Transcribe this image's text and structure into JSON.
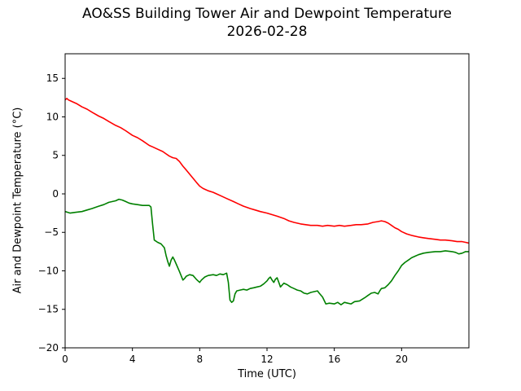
{
  "figure": {
    "background": "#ffffff"
  },
  "chart_data": {
    "type": "line",
    "title": "AO&SS Building Tower Air and Dewpoint Temperature",
    "subtitle": "2026-02-28",
    "xlabel": "Time (UTC)",
    "ylabel": "Air and Dewpoint Temperature (°C)",
    "xlim": [
      0,
      24
    ],
    "ylim": [
      -20,
      18.2
    ],
    "xticks": [
      0,
      4,
      8,
      12,
      16,
      20
    ],
    "xtick_labels": [
      "0",
      "4",
      "8",
      "12",
      "16",
      "20"
    ],
    "yticks": [
      -20,
      -15,
      -10,
      -5,
      0,
      5,
      10,
      15
    ],
    "ytick_labels": [
      "−20",
      "−15",
      "−10",
      "−5",
      "0",
      "5",
      "10",
      "15"
    ],
    "grid": false,
    "legend": "none",
    "axis_color": "#000000",
    "series": [
      {
        "name": "Air Temperature",
        "color": "#ff0000",
        "points": [
          [
            0,
            12.2
          ],
          [
            0.1,
            12.4
          ],
          [
            0.2,
            12.2
          ],
          [
            0.3,
            12.1
          ],
          [
            0.5,
            11.9
          ],
          [
            0.7,
            11.7
          ],
          [
            1,
            11.3
          ],
          [
            1.3,
            11.0
          ],
          [
            1.6,
            10.6
          ],
          [
            2,
            10.1
          ],
          [
            2.3,
            9.8
          ],
          [
            2.6,
            9.4
          ],
          [
            3,
            8.9
          ],
          [
            3.3,
            8.6
          ],
          [
            3.6,
            8.2
          ],
          [
            4,
            7.6
          ],
          [
            4.3,
            7.3
          ],
          [
            4.6,
            6.9
          ],
          [
            5,
            6.3
          ],
          [
            5.2,
            6.1
          ],
          [
            5.5,
            5.8
          ],
          [
            5.8,
            5.5
          ],
          [
            6,
            5.2
          ],
          [
            6.2,
            4.9
          ],
          [
            6.4,
            4.7
          ],
          [
            6.6,
            4.6
          ],
          [
            6.8,
            4.2
          ],
          [
            7,
            3.6
          ],
          [
            7.2,
            3.1
          ],
          [
            7.5,
            2.3
          ],
          [
            7.8,
            1.5
          ],
          [
            8,
            1.0
          ],
          [
            8.2,
            0.7
          ],
          [
            8.5,
            0.4
          ],
          [
            8.8,
            0.2
          ],
          [
            9,
            0.0
          ],
          [
            9.3,
            -0.3
          ],
          [
            9.6,
            -0.6
          ],
          [
            10,
            -1.0
          ],
          [
            10.3,
            -1.3
          ],
          [
            10.6,
            -1.6
          ],
          [
            11,
            -1.9
          ],
          [
            11.3,
            -2.1
          ],
          [
            11.6,
            -2.3
          ],
          [
            12,
            -2.5
          ],
          [
            12.3,
            -2.7
          ],
          [
            12.6,
            -2.9
          ],
          [
            13,
            -3.2
          ],
          [
            13.3,
            -3.5
          ],
          [
            13.6,
            -3.7
          ],
          [
            14,
            -3.9
          ],
          [
            14.3,
            -4.0
          ],
          [
            14.6,
            -4.1
          ],
          [
            15,
            -4.1
          ],
          [
            15.3,
            -4.2
          ],
          [
            15.6,
            -4.1
          ],
          [
            16,
            -4.2
          ],
          [
            16.3,
            -4.1
          ],
          [
            16.6,
            -4.2
          ],
          [
            17,
            -4.1
          ],
          [
            17.3,
            -4.0
          ],
          [
            17.6,
            -4.0
          ],
          [
            18,
            -3.9
          ],
          [
            18.3,
            -3.7
          ],
          [
            18.6,
            -3.6
          ],
          [
            18.8,
            -3.5
          ],
          [
            19,
            -3.6
          ],
          [
            19.2,
            -3.8
          ],
          [
            19.4,
            -4.1
          ],
          [
            19.6,
            -4.4
          ],
          [
            19.8,
            -4.6
          ],
          [
            20,
            -4.9
          ],
          [
            20.3,
            -5.2
          ],
          [
            20.6,
            -5.4
          ],
          [
            21,
            -5.6
          ],
          [
            21.3,
            -5.7
          ],
          [
            21.6,
            -5.8
          ],
          [
            22,
            -5.9
          ],
          [
            22.3,
            -6.0
          ],
          [
            22.6,
            -6.0
          ],
          [
            23,
            -6.1
          ],
          [
            23.3,
            -6.2
          ],
          [
            23.6,
            -6.2
          ],
          [
            23.8,
            -6.3
          ],
          [
            24,
            -6.4
          ]
        ]
      },
      {
        "name": "Dewpoint Temperature",
        "color": "#008000",
        "points": [
          [
            0,
            -2.3
          ],
          [
            0.3,
            -2.5
          ],
          [
            0.6,
            -2.4
          ],
          [
            1,
            -2.3
          ],
          [
            1.3,
            -2.1
          ],
          [
            1.6,
            -1.9
          ],
          [
            2,
            -1.6
          ],
          [
            2.3,
            -1.4
          ],
          [
            2.6,
            -1.1
          ],
          [
            3,
            -0.9
          ],
          [
            3.2,
            -0.7
          ],
          [
            3.4,
            -0.8
          ],
          [
            3.6,
            -1.0
          ],
          [
            3.8,
            -1.2
          ],
          [
            4,
            -1.3
          ],
          [
            4.3,
            -1.4
          ],
          [
            4.6,
            -1.5
          ],
          [
            5,
            -1.5
          ],
          [
            5.1,
            -1.7
          ],
          [
            5.2,
            -4.0
          ],
          [
            5.3,
            -6.0
          ],
          [
            5.5,
            -6.3
          ],
          [
            5.7,
            -6.5
          ],
          [
            5.9,
            -7.0
          ],
          [
            6,
            -8.0
          ],
          [
            6.1,
            -8.8
          ],
          [
            6.2,
            -9.4
          ],
          [
            6.3,
            -8.6
          ],
          [
            6.4,
            -8.2
          ],
          [
            6.5,
            -8.6
          ],
          [
            6.6,
            -9.1
          ],
          [
            6.8,
            -10.1
          ],
          [
            7,
            -11.2
          ],
          [
            7.1,
            -11.0
          ],
          [
            7.2,
            -10.7
          ],
          [
            7.4,
            -10.5
          ],
          [
            7.6,
            -10.6
          ],
          [
            7.8,
            -11.1
          ],
          [
            8,
            -11.5
          ],
          [
            8.1,
            -11.2
          ],
          [
            8.3,
            -10.8
          ],
          [
            8.5,
            -10.6
          ],
          [
            8.8,
            -10.5
          ],
          [
            9,
            -10.6
          ],
          [
            9.2,
            -10.4
          ],
          [
            9.4,
            -10.5
          ],
          [
            9.6,
            -10.3
          ],
          [
            9.7,
            -11.5
          ],
          [
            9.8,
            -13.8
          ],
          [
            9.9,
            -14.1
          ],
          [
            10,
            -13.9
          ],
          [
            10.1,
            -13.0
          ],
          [
            10.2,
            -12.6
          ],
          [
            10.4,
            -12.5
          ],
          [
            10.6,
            -12.4
          ],
          [
            10.8,
            -12.5
          ],
          [
            11,
            -12.3
          ],
          [
            11.2,
            -12.2
          ],
          [
            11.4,
            -12.1
          ],
          [
            11.6,
            -12.0
          ],
          [
            11.8,
            -11.7
          ],
          [
            12,
            -11.3
          ],
          [
            12.1,
            -11.0
          ],
          [
            12.2,
            -10.8
          ],
          [
            12.3,
            -11.2
          ],
          [
            12.4,
            -11.5
          ],
          [
            12.5,
            -11.1
          ],
          [
            12.6,
            -10.9
          ],
          [
            12.7,
            -11.5
          ],
          [
            12.8,
            -12.1
          ],
          [
            13,
            -11.6
          ],
          [
            13.2,
            -11.8
          ],
          [
            13.4,
            -12.1
          ],
          [
            13.6,
            -12.3
          ],
          [
            13.8,
            -12.5
          ],
          [
            14,
            -12.6
          ],
          [
            14.2,
            -12.9
          ],
          [
            14.4,
            -13.0
          ],
          [
            14.6,
            -12.8
          ],
          [
            14.8,
            -12.7
          ],
          [
            15,
            -12.6
          ],
          [
            15.1,
            -12.9
          ],
          [
            15.3,
            -13.4
          ],
          [
            15.5,
            -14.3
          ],
          [
            15.7,
            -14.2
          ],
          [
            16,
            -14.3
          ],
          [
            16.2,
            -14.1
          ],
          [
            16.4,
            -14.4
          ],
          [
            16.6,
            -14.1
          ],
          [
            16.8,
            -14.2
          ],
          [
            17,
            -14.3
          ],
          [
            17.2,
            -14.0
          ],
          [
            17.5,
            -13.9
          ],
          [
            17.8,
            -13.5
          ],
          [
            18,
            -13.2
          ],
          [
            18.2,
            -12.9
          ],
          [
            18.4,
            -12.8
          ],
          [
            18.6,
            -13.0
          ],
          [
            18.7,
            -12.6
          ],
          [
            18.8,
            -12.3
          ],
          [
            19,
            -12.2
          ],
          [
            19.2,
            -11.8
          ],
          [
            19.4,
            -11.3
          ],
          [
            19.6,
            -10.6
          ],
          [
            19.8,
            -10.0
          ],
          [
            20,
            -9.3
          ],
          [
            20.2,
            -8.9
          ],
          [
            20.4,
            -8.6
          ],
          [
            20.6,
            -8.3
          ],
          [
            20.8,
            -8.1
          ],
          [
            21,
            -7.9
          ],
          [
            21.3,
            -7.7
          ],
          [
            21.6,
            -7.6
          ],
          [
            22,
            -7.5
          ],
          [
            22.3,
            -7.5
          ],
          [
            22.6,
            -7.4
          ],
          [
            23,
            -7.5
          ],
          [
            23.2,
            -7.6
          ],
          [
            23.4,
            -7.8
          ],
          [
            23.6,
            -7.7
          ],
          [
            23.8,
            -7.5
          ],
          [
            24,
            -7.5
          ]
        ]
      }
    ]
  }
}
